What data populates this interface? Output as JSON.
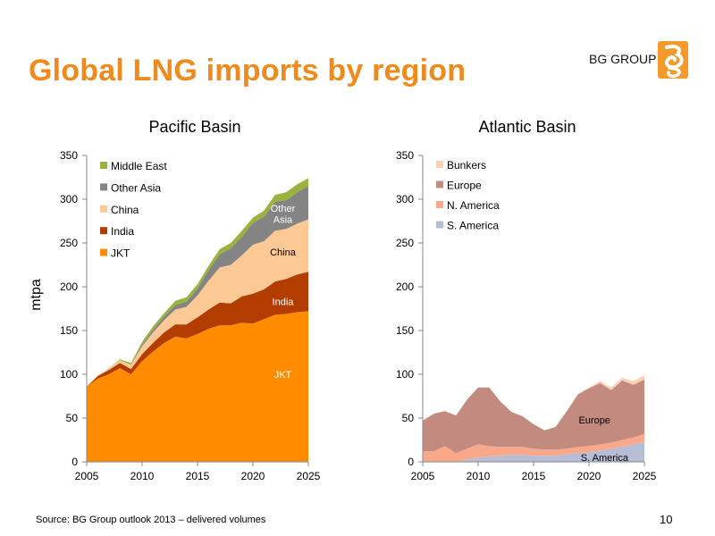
{
  "slide": {
    "title": "Global LNG imports by region",
    "brand": "BG GROUP",
    "brand_logo": "bg-logo",
    "source": "Source: BG Group outlook 2013 – delivered volumes",
    "page_number": "10"
  },
  "colors": {
    "title": "#f08a1c",
    "logo": "#f39a2b",
    "JKT": "#ff8c00",
    "India": "#b33c00",
    "China": "#fcc995",
    "Other Asia": "#848484",
    "Middle East": "#9ab33c",
    "S. America": "#b8bdd6",
    "N. America": "#f9a98a",
    "Europe": "#c38b80",
    "Bunkers": "#fcd0b4"
  },
  "chart_data": [
    {
      "type": "area",
      "stacked": true,
      "title": "Pacific Basin",
      "ylabel": "mtpa",
      "xlabel": "",
      "xlim": [
        2005,
        2025
      ],
      "ylim": [
        0,
        350
      ],
      "xticks": [
        2005,
        2010,
        2015,
        2020,
        2025
      ],
      "yticks": [
        0,
        50,
        100,
        150,
        200,
        250,
        300,
        350
      ],
      "grid": false,
      "legend_position": "top-left",
      "legend_order": [
        "Middle East",
        "Other Asia",
        "China",
        "India",
        "JKT"
      ],
      "x": [
        2005,
        2006,
        2007,
        2008,
        2009,
        2010,
        2011,
        2012,
        2013,
        2014,
        2015,
        2016,
        2017,
        2018,
        2019,
        2020,
        2021,
        2022,
        2023,
        2024,
        2025
      ],
      "series": [
        {
          "name": "JKT",
          "values": [
            86,
            95,
            100,
            107,
            100,
            115,
            126,
            136,
            143,
            141,
            146,
            152,
            156,
            156,
            159,
            158,
            163,
            168,
            169,
            171,
            172
          ]
        },
        {
          "name": "India",
          "values": [
            0,
            3,
            5,
            6,
            6,
            8,
            10,
            12,
            14,
            16,
            19,
            22,
            26,
            25,
            30,
            34,
            34,
            38,
            40,
            43,
            45
          ]
        },
        {
          "name": "China",
          "values": [
            0,
            1,
            2,
            3,
            5,
            9,
            12,
            14,
            17,
            20,
            25,
            33,
            40,
            44,
            47,
            56,
            55,
            58,
            57,
            58,
            60
          ]
        },
        {
          "name": "Other Asia",
          "values": [
            0,
            0,
            0,
            0,
            0,
            2,
            3,
            4,
            5,
            6,
            8,
            12,
            15,
            19,
            21,
            25,
            28,
            33,
            33,
            36,
            38
          ]
        },
        {
          "name": "Middle East",
          "values": [
            0,
            0,
            0,
            1,
            2,
            3,
            4,
            4,
            5,
            5,
            5,
            5,
            6,
            6,
            7,
            6,
            7,
            8,
            9,
            9,
            9
          ]
        }
      ],
      "annotations": [
        {
          "text": "JKT",
          "x": 2022.7,
          "y": 100,
          "color": "#ffffff"
        },
        {
          "text": "India",
          "x": 2022.7,
          "y": 183,
          "color": "#ffffff"
        },
        {
          "text": "China",
          "x": 2022.7,
          "y": 240,
          "color": "#000000"
        },
        {
          "text": "Other",
          "x": 2022.7,
          "y": 290,
          "color": "#ffffff"
        },
        {
          "text": "Asia",
          "x": 2022.7,
          "y": 277,
          "color": "#ffffff"
        }
      ]
    },
    {
      "type": "area",
      "stacked": true,
      "title": "Atlantic Basin",
      "ylabel": "",
      "xlabel": "",
      "xlim": [
        2005,
        2025
      ],
      "ylim": [
        0,
        350
      ],
      "xticks": [
        2005,
        2010,
        2015,
        2020,
        2025
      ],
      "yticks": [
        0,
        50,
        100,
        150,
        200,
        250,
        300,
        350
      ],
      "grid": false,
      "legend_position": "top-left",
      "legend_order": [
        "Bunkers",
        "Europe",
        "N. America",
        "S. America"
      ],
      "x": [
        2005,
        2006,
        2007,
        2008,
        2009,
        2010,
        2011,
        2012,
        2013,
        2014,
        2015,
        2016,
        2017,
        2018,
        2019,
        2020,
        2021,
        2022,
        2023,
        2024,
        2025
      ],
      "series": [
        {
          "name": "S. America",
          "values": [
            0,
            0,
            0,
            0,
            3,
            5,
            6,
            7,
            8,
            8,
            7,
            7,
            7,
            9,
            10,
            11,
            13,
            15,
            17,
            20,
            23
          ]
        },
        {
          "name": "N. America",
          "values": [
            12,
            12,
            18,
            10,
            12,
            15,
            12,
            10,
            9,
            9,
            8,
            7,
            7,
            6,
            7,
            7,
            7,
            7,
            8,
            8,
            9
          ]
        },
        {
          "name": "Europe",
          "values": [
            35,
            43,
            40,
            43,
            56,
            65,
            67,
            52,
            40,
            35,
            28,
            22,
            26,
            43,
            60,
            66,
            70,
            60,
            68,
            60,
            62
          ]
        },
        {
          "name": "Bunkers",
          "values": [
            0,
            0,
            0,
            0,
            0,
            0,
            0,
            0,
            0,
            0,
            0,
            0,
            0,
            0,
            1,
            1,
            2,
            3,
            3,
            4,
            5
          ]
        }
      ],
      "annotations": [
        {
          "text": "Europe",
          "x": 2020.5,
          "y": 48,
          "color": "#000000"
        },
        {
          "text": "S. America",
          "x": 2021.4,
          "y": 5,
          "color": "#000000"
        }
      ]
    }
  ]
}
